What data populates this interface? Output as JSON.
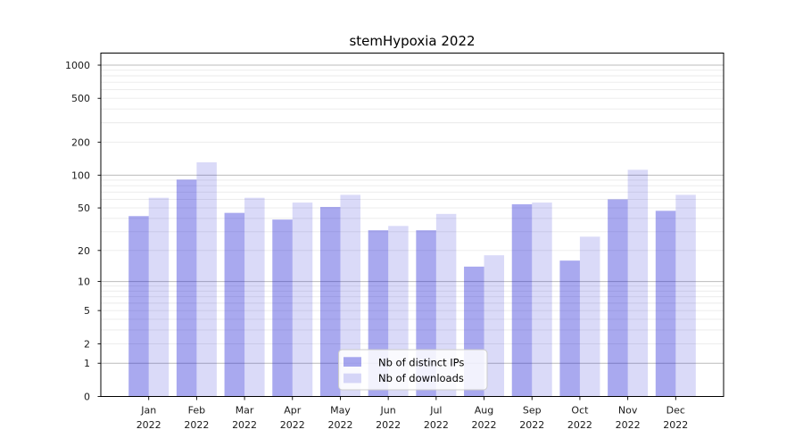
{
  "page": {
    "background": "#ffffff"
  },
  "chart_data": {
    "type": "bar",
    "title": "stemHypoxia 2022",
    "xlabel": "",
    "ylabel": "",
    "categories": [
      "Jan 2022",
      "Feb 2022",
      "Mar 2022",
      "Apr 2022",
      "May 2022",
      "Jun 2022",
      "Jul 2022",
      "Aug 2022",
      "Sep 2022",
      "Oct 2022",
      "Nov 2022",
      "Dec 2022"
    ],
    "months": [
      "Jan",
      "Feb",
      "Mar",
      "Apr",
      "May",
      "Jun",
      "Jul",
      "Aug",
      "Sep",
      "Oct",
      "Nov",
      "Dec"
    ],
    "year_label": "2022",
    "series": [
      {
        "name": "Nb of distinct IPs",
        "color": "#0a0ad2",
        "opacity": 0.35,
        "values": [
          42,
          91,
          45,
          39,
          51,
          31,
          31,
          14,
          54,
          16,
          60,
          47
        ]
      },
      {
        "name": "Nb of downloads",
        "color": "#0a0ad2",
        "opacity": 0.15,
        "values": [
          62,
          131,
          62,
          56,
          66,
          34,
          44,
          18,
          56,
          27,
          112,
          66
        ]
      }
    ],
    "yscale": "log1p",
    "ylim": [
      0,
      1290
    ],
    "yticks": [
      0,
      1,
      2,
      5,
      10,
      20,
      50,
      100,
      200,
      500,
      1000
    ],
    "grid": {
      "on": true,
      "major_color": "#bbbbbb",
      "minor_color": "#eaeaea"
    },
    "legend": {
      "position": "lower center",
      "background": "rgba(255,255,255,0.85)",
      "border_color": "#cccccc"
    },
    "axis_color": "#000000",
    "tick_label_color": "#1a1a1a"
  }
}
